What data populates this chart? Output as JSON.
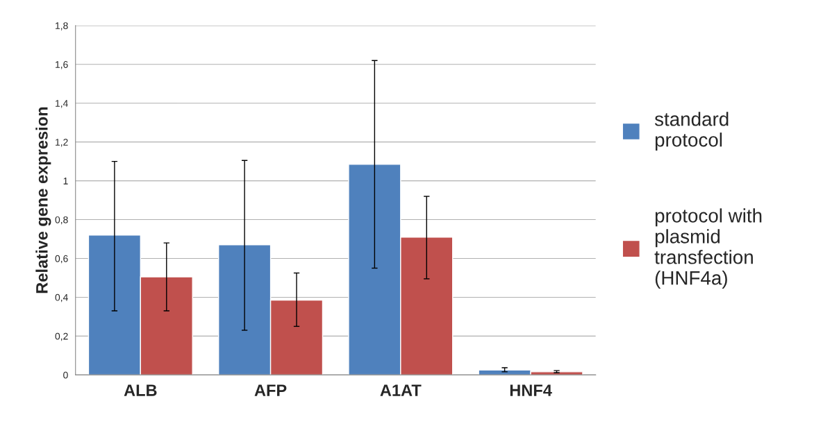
{
  "chart_data": {
    "type": "bar",
    "ylabel": "Relative gene expresion",
    "categories": [
      "ALB",
      "AFP",
      "A1AT",
      "HNF4"
    ],
    "series": [
      {
        "name": "standard protocol",
        "color": "#4f81bd",
        "values": [
          0.72,
          0.67,
          1.085,
          0.025
        ],
        "errors": [
          [
            0.33,
            1.1
          ],
          [
            0.23,
            1.105
          ],
          [
            0.55,
            1.62
          ],
          [
            0.016,
            0.037
          ]
        ]
      },
      {
        "name": "protocol with plasmid transfection (HNF4a)",
        "color": "#c0504d",
        "values": [
          0.505,
          0.385,
          0.71,
          0.016
        ],
        "errors": [
          [
            0.33,
            0.68
          ],
          [
            0.25,
            0.525
          ],
          [
            0.495,
            0.92
          ],
          [
            0.011,
            0.022
          ]
        ]
      }
    ],
    "ylim": [
      0,
      1.8
    ],
    "yticks": [
      0,
      {
        "value": 0.2,
        "label": "0,2"
      },
      {
        "value": 0.4,
        "label": "0,4"
      },
      {
        "value": 0.6,
        "label": "0,6"
      },
      {
        "value": 0.8,
        "label": "0,8"
      },
      1,
      {
        "value": 1.2,
        "label": "1,2"
      },
      {
        "value": 1.4,
        "label": "1,4"
      },
      {
        "value": 1.6,
        "label": "1,6"
      },
      {
        "value": 1.8,
        "label": "1,8"
      }
    ],
    "grid": "y",
    "legend": "right"
  }
}
